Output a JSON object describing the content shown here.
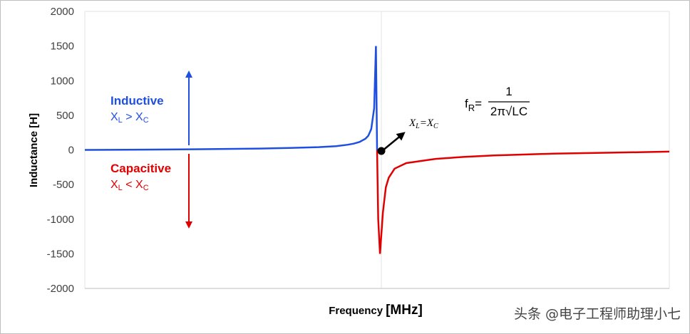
{
  "chart_data": {
    "type": "line",
    "title": "",
    "xlabel": "Frequency",
    "xlabel_unit": "[MHz]",
    "ylabel": "Inductance [H]",
    "ylim": [
      -2000,
      2000
    ],
    "yticks": [
      2000,
      1500,
      1000,
      500,
      0,
      -500,
      -1000,
      -1500,
      -2000
    ],
    "x_ticks_shown": false,
    "grid": "vertical-minor",
    "series": [
      {
        "color": "#1f4fe0",
        "x": [
          0,
          0.1,
          0.2,
          0.3,
          0.35,
          0.4,
          0.43,
          0.45,
          0.46,
          0.47,
          0.48,
          0.485,
          0.49,
          0.495,
          0.498,
          0.5
        ],
        "values": [
          0,
          4,
          10,
          20,
          28,
          40,
          55,
          75,
          90,
          115,
          160,
          205,
          300,
          600,
          1500,
          0
        ]
      },
      {
        "color": "#e00000",
        "x": [
          0.5,
          0.502,
          0.505,
          0.51,
          0.515,
          0.52,
          0.53,
          0.55,
          0.6,
          0.65,
          0.7,
          0.8,
          0.9,
          1.0
        ],
        "values": [
          0,
          -1000,
          -1500,
          -900,
          -540,
          -400,
          -270,
          -190,
          -130,
          -100,
          -80,
          -55,
          -40,
          -25
        ]
      }
    ],
    "annotations": {
      "inductive": {
        "label": "Inductive",
        "condition_main": "X",
        "sub1": "L",
        "op": " > X",
        "sub2": "C",
        "color": "#1f4fe0"
      },
      "capacitive": {
        "label": "Capacitive",
        "condition_main": "X",
        "sub1": "L",
        "op": " < X",
        "sub2": "C",
        "color": "#e00000"
      },
      "resonance": {
        "a": "X",
        "a_sub": "L",
        "eq": "=X",
        "b_sub": "C"
      },
      "formula": {
        "lhs": "f",
        "lhs_sub": "R",
        "eq": "=",
        "numerator": "1",
        "denominator": "2π√LC"
      }
    }
  },
  "watermark": "头条 @电子工程师助理小七"
}
